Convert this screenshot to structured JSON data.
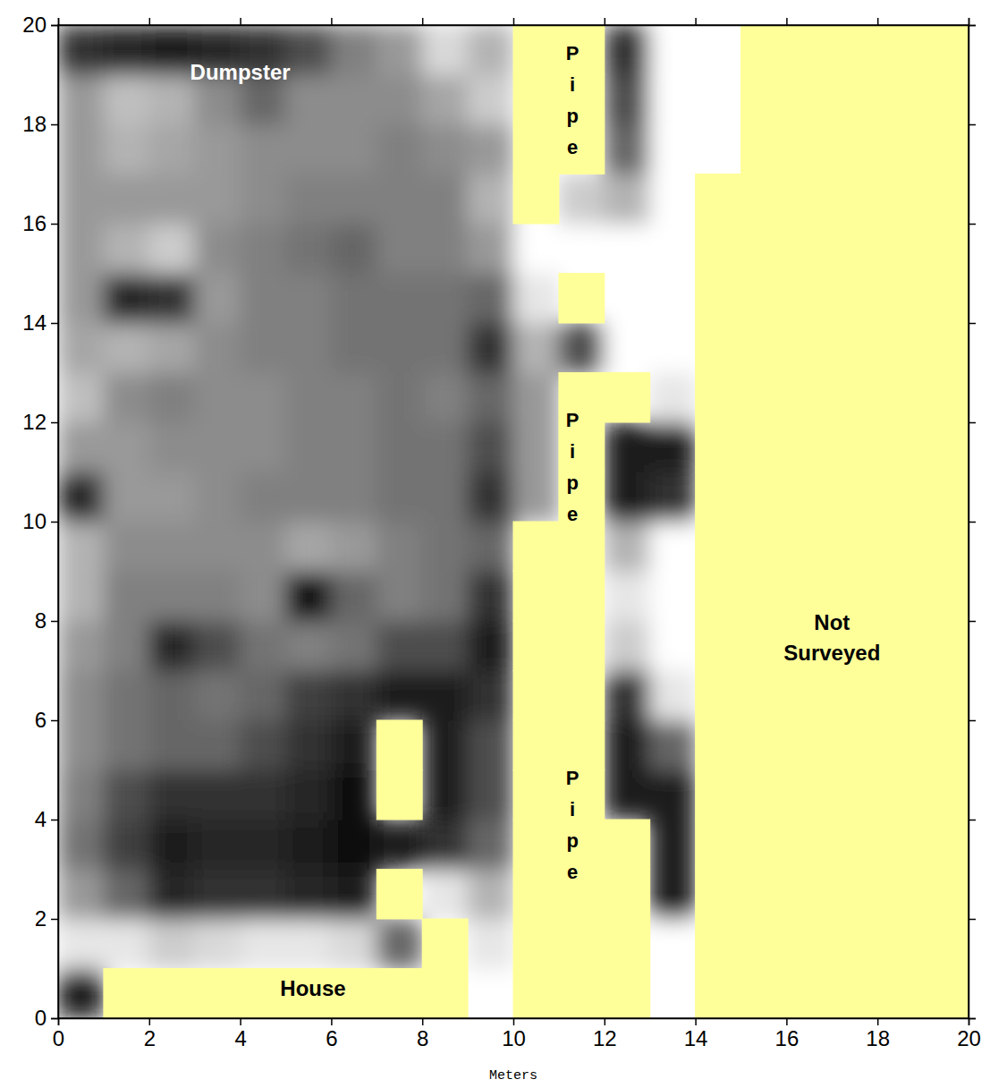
{
  "chart_data": {
    "type": "heatmap",
    "xlabel": "Meters",
    "xlim": [
      0,
      20
    ],
    "ylim": [
      0,
      20
    ],
    "xticks": [
      0,
      2,
      4,
      6,
      8,
      10,
      12,
      14,
      16,
      18,
      20
    ],
    "yticks": [
      0,
      2,
      4,
      6,
      8,
      10,
      12,
      14,
      16,
      18,
      20
    ],
    "zlim": [
      0,
      100
    ],
    "x_bins": [
      0,
      1,
      2,
      3,
      4,
      5,
      6,
      7,
      8,
      9,
      10,
      11,
      12,
      13,
      14,
      15,
      16,
      17,
      18,
      19,
      20
    ],
    "y_bins": [
      0,
      1,
      2,
      3,
      4,
      5,
      6,
      7,
      8,
      9,
      10,
      11,
      12,
      13,
      14,
      15,
      16,
      17,
      18,
      19,
      20
    ],
    "z": [
      [
        90,
        null,
        null,
        null,
        null,
        null,
        null,
        null,
        null,
        0,
        null,
        null,
        null,
        0,
        null,
        null,
        null,
        null,
        null,
        null
      ],
      [
        10,
        10,
        20,
        15,
        10,
        10,
        15,
        60,
        null,
        10,
        null,
        null,
        null,
        0,
        null,
        null,
        null,
        null,
        null,
        null
      ],
      [
        40,
        60,
        85,
        80,
        80,
        85,
        90,
        null,
        10,
        30,
        null,
        null,
        null,
        90,
        null,
        null,
        null,
        null,
        null,
        null
      ],
      [
        55,
        75,
        90,
        85,
        85,
        90,
        95,
        90,
        80,
        60,
        null,
        null,
        null,
        90,
        null,
        null,
        null,
        null,
        null,
        null
      ],
      [
        50,
        70,
        80,
        80,
        80,
        85,
        95,
        null,
        90,
        70,
        null,
        null,
        90,
        90,
        null,
        null,
        null,
        null,
        null,
        null
      ],
      [
        45,
        55,
        60,
        60,
        70,
        80,
        90,
        null,
        90,
        70,
        null,
        null,
        90,
        60,
        null,
        null,
        null,
        null,
        null,
        null
      ],
      [
        45,
        55,
        60,
        55,
        60,
        75,
        80,
        90,
        90,
        80,
        null,
        null,
        80,
        10,
        null,
        null,
        null,
        null,
        null,
        null
      ],
      [
        40,
        50,
        85,
        70,
        55,
        50,
        55,
        70,
        70,
        90,
        null,
        null,
        20,
        0,
        null,
        null,
        null,
        null,
        null,
        null
      ],
      [
        30,
        50,
        50,
        50,
        45,
        95,
        60,
        50,
        55,
        80,
        null,
        null,
        10,
        0,
        null,
        null,
        null,
        null,
        null,
        null
      ],
      [
        30,
        45,
        45,
        45,
        45,
        35,
        40,
        50,
        55,
        60,
        null,
        null,
        30,
        0,
        null,
        null,
        null,
        null,
        null,
        null
      ],
      [
        85,
        40,
        40,
        45,
        50,
        50,
        50,
        55,
        55,
        80,
        40,
        null,
        90,
        80,
        null,
        null,
        null,
        null,
        null,
        null
      ],
      [
        40,
        40,
        45,
        45,
        45,
        50,
        50,
        55,
        55,
        70,
        40,
        null,
        90,
        90,
        null,
        null,
        null,
        null,
        null,
        null
      ],
      [
        25,
        45,
        50,
        45,
        45,
        50,
        50,
        55,
        50,
        60,
        40,
        null,
        null,
        10,
        null,
        null,
        null,
        null,
        null,
        null
      ],
      [
        35,
        30,
        35,
        45,
        50,
        50,
        55,
        55,
        55,
        80,
        30,
        70,
        0,
        0,
        null,
        null,
        null,
        null,
        null,
        null
      ],
      [
        40,
        85,
        80,
        40,
        50,
        50,
        55,
        55,
        55,
        60,
        10,
        null,
        0,
        0,
        null,
        null,
        null,
        null,
        null,
        null
      ],
      [
        40,
        30,
        20,
        45,
        50,
        55,
        60,
        50,
        50,
        40,
        0,
        0,
        0,
        0,
        null,
        null,
        null,
        null,
        null,
        null
      ],
      [
        40,
        40,
        40,
        40,
        45,
        50,
        50,
        50,
        50,
        30,
        null,
        20,
        30,
        0,
        null,
        null,
        null,
        null,
        null,
        null
      ],
      [
        40,
        30,
        35,
        40,
        45,
        45,
        45,
        50,
        45,
        40,
        null,
        null,
        60,
        0,
        0,
        null,
        null,
        null,
        null,
        null
      ],
      [
        40,
        25,
        30,
        45,
        60,
        45,
        45,
        45,
        35,
        20,
        null,
        null,
        70,
        0,
        0,
        null,
        null,
        null,
        null,
        null
      ],
      [
        80,
        85,
        90,
        85,
        80,
        70,
        50,
        40,
        15,
        30,
        null,
        null,
        80,
        0,
        0,
        null,
        null,
        null,
        null,
        null
      ]
    ],
    "annotations": [
      {
        "text": "Dumpster",
        "x": 4,
        "y": 19.05,
        "color": "#ffffff"
      },
      {
        "text": "Pipe",
        "x": 11.3,
        "y": 18.5,
        "color": "#000000",
        "orientation": "vertical"
      },
      {
        "text": "Pipe",
        "x": 11.3,
        "y": 11.1,
        "color": "#000000",
        "orientation": "vertical"
      },
      {
        "text": "Pipe",
        "x": 11.3,
        "y": 3.9,
        "color": "#000000",
        "orientation": "vertical"
      },
      {
        "text": "House",
        "x": 5.6,
        "y": 0.6,
        "color": "#000000"
      },
      {
        "text": "Not Surveyed",
        "x": 17,
        "y": 7.65,
        "color": "#000000"
      }
    ]
  }
}
